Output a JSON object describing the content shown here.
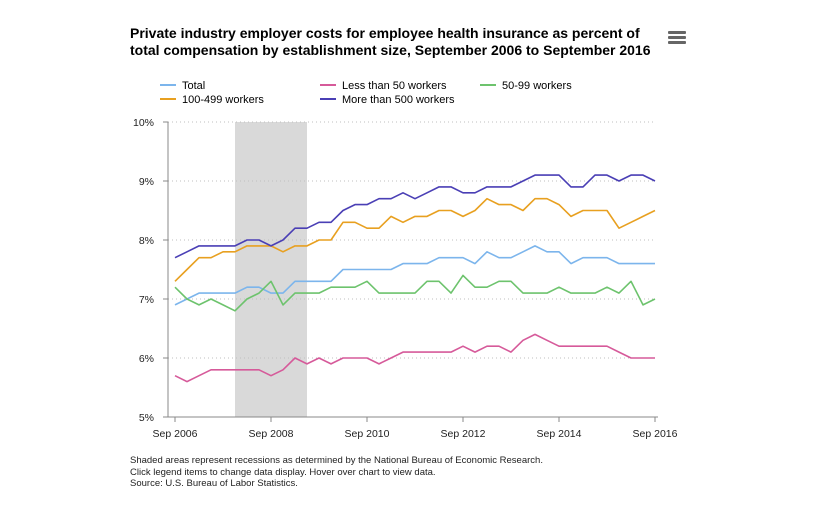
{
  "title": "Private industry employer costs for employee health insurance as percent of total compensation by establishment size, September 2006 to September 2016",
  "menu_icon": "hamburger-menu-icon",
  "legend": [
    {
      "label": "Total",
      "color": "#7cb5ec"
    },
    {
      "label": "Less than 50 workers",
      "color": "#d65a9a"
    },
    {
      "label": "50-99 workers",
      "color": "#6dc36d"
    },
    {
      "label": "100-499 workers",
      "color": "#e8a020"
    },
    {
      "label": "More than 500 workers",
      "color": "#4a3fb5"
    }
  ],
  "notes": {
    "line1": "Shaded areas represent recessions as determined by the National Bureau of Economic Research.",
    "line2": "Click legend items to change data display. Hover over chart to view data.",
    "line3": "Source: U.S. Bureau of Labor Statistics."
  },
  "chart_data": {
    "type": "line",
    "title": "Private industry employer costs for employee health insurance as percent of total compensation by establishment size, September 2006 to September 2016",
    "x_label_ticks": [
      "Sep 2006",
      "Sep 2008",
      "Sep 2010",
      "Sep 2012",
      "Sep 2014",
      "Sep 2016"
    ],
    "y_ticks": [
      "5%",
      "6%",
      "7%",
      "8%",
      "9%",
      "10%"
    ],
    "ylim": [
      5,
      10
    ],
    "grid": true,
    "recession": {
      "start": "Dec 2007",
      "end": "Jun 2009",
      "color": "#d9d9d9"
    },
    "x": [
      "Sep 2006",
      "Dec 2006",
      "Mar 2007",
      "Jun 2007",
      "Sep 2007",
      "Dec 2007",
      "Mar 2008",
      "Jun 2008",
      "Sep 2008",
      "Dec 2008",
      "Mar 2009",
      "Jun 2009",
      "Sep 2009",
      "Dec 2009",
      "Mar 2010",
      "Jun 2010",
      "Sep 2010",
      "Dec 2010",
      "Mar 2011",
      "Jun 2011",
      "Sep 2011",
      "Dec 2011",
      "Mar 2012",
      "Jun 2012",
      "Sep 2012",
      "Dec 2012",
      "Mar 2013",
      "Jun 2013",
      "Sep 2013",
      "Dec 2013",
      "Mar 2014",
      "Jun 2014",
      "Sep 2014",
      "Dec 2014",
      "Mar 2015",
      "Jun 2015",
      "Sep 2015",
      "Dec 2015",
      "Mar 2016",
      "Jun 2016",
      "Sep 2016"
    ],
    "series": [
      {
        "name": "Total",
        "color": "#7cb5ec",
        "values": [
          6.9,
          7.0,
          7.1,
          7.1,
          7.1,
          7.1,
          7.2,
          7.2,
          7.1,
          7.1,
          7.3,
          7.3,
          7.3,
          7.3,
          7.5,
          7.5,
          7.5,
          7.5,
          7.5,
          7.6,
          7.6,
          7.6,
          7.7,
          7.7,
          7.7,
          7.6,
          7.8,
          7.7,
          7.7,
          7.8,
          7.9,
          7.8,
          7.8,
          7.6,
          7.7,
          7.7,
          7.7,
          7.6,
          7.6,
          7.6,
          7.6
        ]
      },
      {
        "name": "Less than 50 workers",
        "color": "#d65a9a",
        "values": [
          5.7,
          5.6,
          5.7,
          5.8,
          5.8,
          5.8,
          5.8,
          5.8,
          5.7,
          5.8,
          6.0,
          5.9,
          6.0,
          5.9,
          6.0,
          6.0,
          6.0,
          5.9,
          6.0,
          6.1,
          6.1,
          6.1,
          6.1,
          6.1,
          6.2,
          6.1,
          6.2,
          6.2,
          6.1,
          6.3,
          6.4,
          6.3,
          6.2,
          6.2,
          6.2,
          6.2,
          6.2,
          6.1,
          6.0,
          6.0,
          6.0
        ]
      },
      {
        "name": "50-99 workers",
        "color": "#6dc36d",
        "values": [
          7.2,
          7.0,
          6.9,
          7.0,
          6.9,
          6.8,
          7.0,
          7.1,
          7.3,
          6.9,
          7.1,
          7.1,
          7.1,
          7.2,
          7.2,
          7.2,
          7.3,
          7.1,
          7.1,
          7.1,
          7.1,
          7.3,
          7.3,
          7.1,
          7.4,
          7.2,
          7.2,
          7.3,
          7.3,
          7.1,
          7.1,
          7.1,
          7.2,
          7.1,
          7.1,
          7.1,
          7.2,
          7.1,
          7.3,
          6.9,
          7.0
        ]
      },
      {
        "name": "100-499 workers",
        "color": "#e8a020",
        "values": [
          7.3,
          7.5,
          7.7,
          7.7,
          7.8,
          7.8,
          7.9,
          7.9,
          7.9,
          7.8,
          7.9,
          7.9,
          8.0,
          8.0,
          8.3,
          8.3,
          8.2,
          8.2,
          8.4,
          8.3,
          8.4,
          8.4,
          8.5,
          8.5,
          8.4,
          8.5,
          8.7,
          8.6,
          8.6,
          8.5,
          8.7,
          8.7,
          8.6,
          8.4,
          8.5,
          8.5,
          8.5,
          8.2,
          8.3,
          8.4,
          8.5
        ]
      },
      {
        "name": "More than 500 workers",
        "color": "#4a3fb5",
        "values": [
          7.7,
          7.8,
          7.9,
          7.9,
          7.9,
          7.9,
          8.0,
          8.0,
          7.9,
          8.0,
          8.2,
          8.2,
          8.3,
          8.3,
          8.5,
          8.6,
          8.6,
          8.7,
          8.7,
          8.8,
          8.7,
          8.8,
          8.9,
          8.9,
          8.8,
          8.8,
          8.9,
          8.9,
          8.9,
          9.0,
          9.1,
          9.1,
          9.1,
          8.9,
          8.9,
          9.1,
          9.1,
          9.0,
          9.1,
          9.1,
          9.0
        ]
      }
    ]
  }
}
